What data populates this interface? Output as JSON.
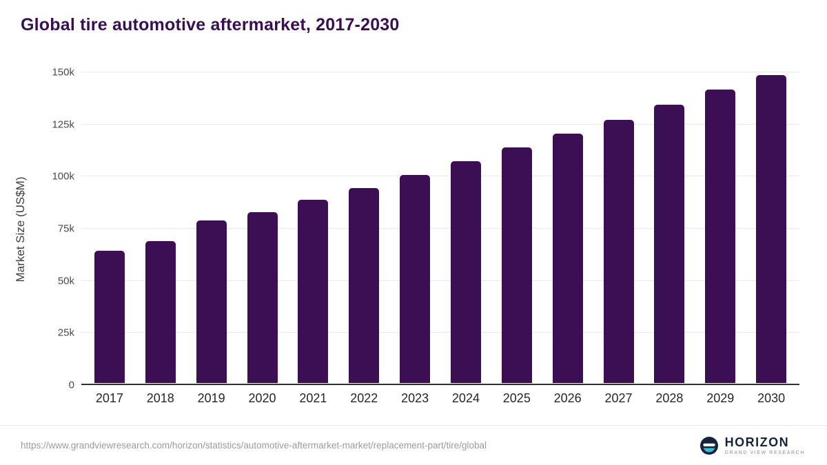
{
  "title": "Global tire automotive aftermarket, 2017-2030",
  "chart_data": {
    "type": "bar",
    "title": "Global tire automotive aftermarket, 2017-2030",
    "categories": [
      "2017",
      "2018",
      "2019",
      "2020",
      "2021",
      "2022",
      "2023",
      "2024",
      "2025",
      "2026",
      "2027",
      "2028",
      "2029",
      "2030"
    ],
    "values": [
      63700,
      68300,
      78300,
      82300,
      88200,
      93900,
      100300,
      106800,
      113400,
      120300,
      126900,
      134000,
      141300,
      148500
    ],
    "xlabel": "",
    "ylabel": "Market Size (US$M)",
    "ylim": [
      0,
      150000
    ],
    "ytick_labels": [
      "0",
      "25k",
      "50k",
      "75k",
      "100k",
      "125k",
      "150k"
    ],
    "grid": true,
    "legend": "none",
    "bar_color": "#3c0f55"
  },
  "footer": {
    "source_url": "https://www.grandviewresearch.com/horizon/statistics/automotive-aftermarket-market/replacement-part/tire/global",
    "logo_name": "HORIZON",
    "logo_sub": "GRAND VIEW RESEARCH",
    "logo_colors": {
      "circle": "#16233e",
      "stripe": "#ffffff",
      "arc": "#35bed3"
    }
  }
}
